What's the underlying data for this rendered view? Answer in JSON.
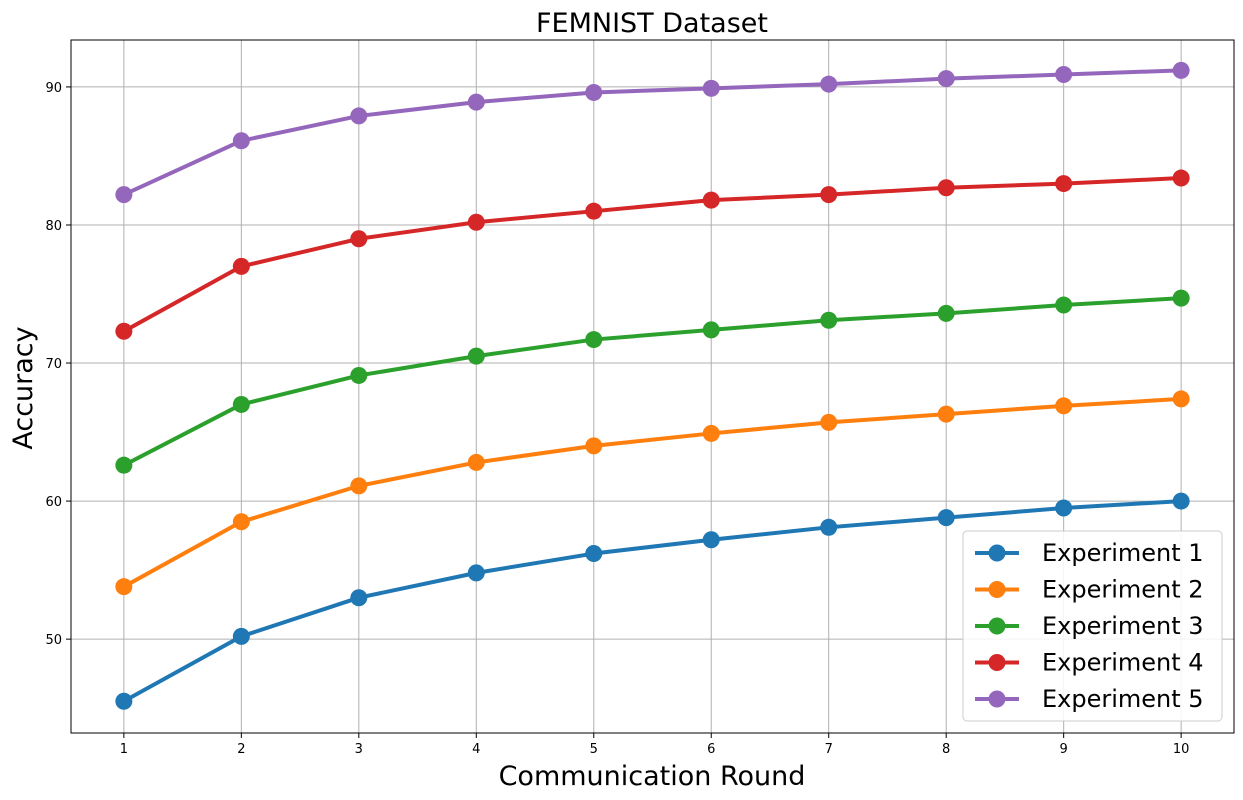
{
  "chart_data": {
    "type": "line",
    "title": "FEMNIST Dataset",
    "xlabel": "Communication Round",
    "ylabel": "Accuracy",
    "x": [
      1,
      2,
      3,
      4,
      5,
      6,
      7,
      8,
      9,
      10
    ],
    "x_tick_labels": [
      "1",
      "2",
      "3",
      "4",
      "5",
      "6",
      "7",
      "8",
      "9",
      "10"
    ],
    "y_ticks": [
      50,
      60,
      70,
      80,
      90
    ],
    "y_tick_labels": [
      "50",
      "60",
      "70",
      "80",
      "90"
    ],
    "xlim": [
      0.55,
      10.45
    ],
    "ylim": [
      43.2,
      93.4
    ],
    "grid": true,
    "legend_position": "bottom-right",
    "series": [
      {
        "name": "Experiment 1",
        "color": "#1f77b4",
        "values": [
          45.5,
          50.2,
          53.0,
          54.8,
          56.2,
          57.2,
          58.1,
          58.8,
          59.5,
          60.0
        ]
      },
      {
        "name": "Experiment 2",
        "color": "#ff7f0e",
        "values": [
          53.8,
          58.5,
          61.1,
          62.8,
          64.0,
          64.9,
          65.7,
          66.3,
          66.9,
          67.4
        ]
      },
      {
        "name": "Experiment 3",
        "color": "#2ca02c",
        "values": [
          62.6,
          67.0,
          69.1,
          70.5,
          71.7,
          72.4,
          73.1,
          73.6,
          74.2,
          74.7
        ]
      },
      {
        "name": "Experiment 4",
        "color": "#d62728",
        "values": [
          72.3,
          77.0,
          79.0,
          80.2,
          81.0,
          81.8,
          82.2,
          82.7,
          83.0,
          83.4
        ]
      },
      {
        "name": "Experiment 5",
        "color": "#9467bd",
        "values": [
          82.2,
          86.1,
          87.9,
          88.9,
          89.6,
          89.9,
          90.2,
          90.6,
          90.9,
          91.2
        ]
      }
    ]
  }
}
